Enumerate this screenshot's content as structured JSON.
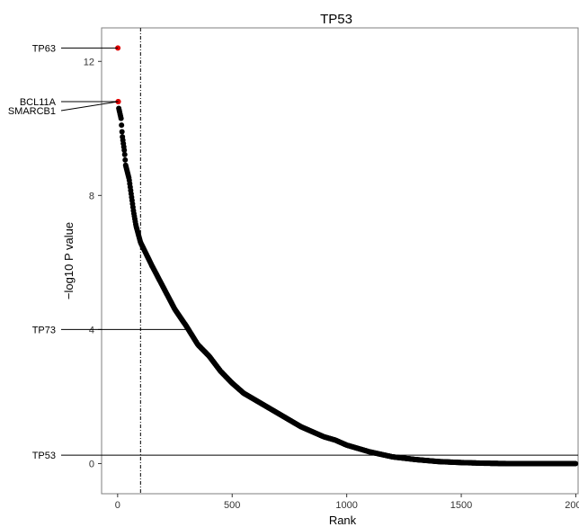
{
  "chart_data": {
    "type": "scatter",
    "title": "TP53",
    "xlabel": "Rank",
    "ylabel": "−log10 P value",
    "xlim": [
      -70,
      2010
    ],
    "ylim": [
      -0.9,
      13.0
    ],
    "x_ticks": [
      0,
      500,
      1000,
      1500,
      2000
    ],
    "y_ticks": [
      0,
      4,
      8,
      12
    ],
    "grid": false,
    "cutoff_rank": 100,
    "point_color": "#000000",
    "highlight_color": "#e00000",
    "curve_knots": [
      [
        5,
        10.6
      ],
      [
        10,
        10.45
      ],
      [
        15,
        10.3
      ],
      [
        20,
        9.8
      ],
      [
        25,
        9.55
      ],
      [
        30,
        9.3
      ],
      [
        35,
        8.9
      ],
      [
        50,
        8.5
      ],
      [
        60,
        8.0
      ],
      [
        70,
        7.5
      ],
      [
        80,
        7.1
      ],
      [
        100,
        6.6
      ],
      [
        150,
        5.9
      ],
      [
        200,
        5.25
      ],
      [
        250,
        4.6
      ],
      [
        300,
        4.1
      ],
      [
        350,
        3.55
      ],
      [
        400,
        3.2
      ],
      [
        450,
        2.75
      ],
      [
        500,
        2.4
      ],
      [
        550,
        2.1
      ],
      [
        600,
        1.9
      ],
      [
        650,
        1.7
      ],
      [
        700,
        1.5
      ],
      [
        750,
        1.3
      ],
      [
        800,
        1.1
      ],
      [
        850,
        0.95
      ],
      [
        900,
        0.8
      ],
      [
        950,
        0.7
      ],
      [
        1000,
        0.55
      ],
      [
        1100,
        0.35
      ],
      [
        1200,
        0.2
      ],
      [
        1300,
        0.12
      ],
      [
        1400,
        0.06
      ],
      [
        1500,
        0.03
      ],
      [
        1600,
        0.01
      ],
      [
        1700,
        0.0
      ],
      [
        2000,
        0.0
      ]
    ],
    "highlights": [
      {
        "gene": "TP63",
        "rank": 1,
        "value": 12.4
      },
      {
        "gene": "BCL11A",
        "rank": 2,
        "value": 10.8
      },
      {
        "gene": "SMARCB1",
        "rank": 3,
        "value": 10.8
      }
    ],
    "annotations": [
      {
        "label": "TP63",
        "value": 12.4
      },
      {
        "label": "BCL11A",
        "value": 10.8
      },
      {
        "label": "SMARCB1",
        "value": 10.8
      },
      {
        "label": "TP73",
        "value": 4.0
      },
      {
        "label": "TP53",
        "value": 0.25
      }
    ]
  }
}
